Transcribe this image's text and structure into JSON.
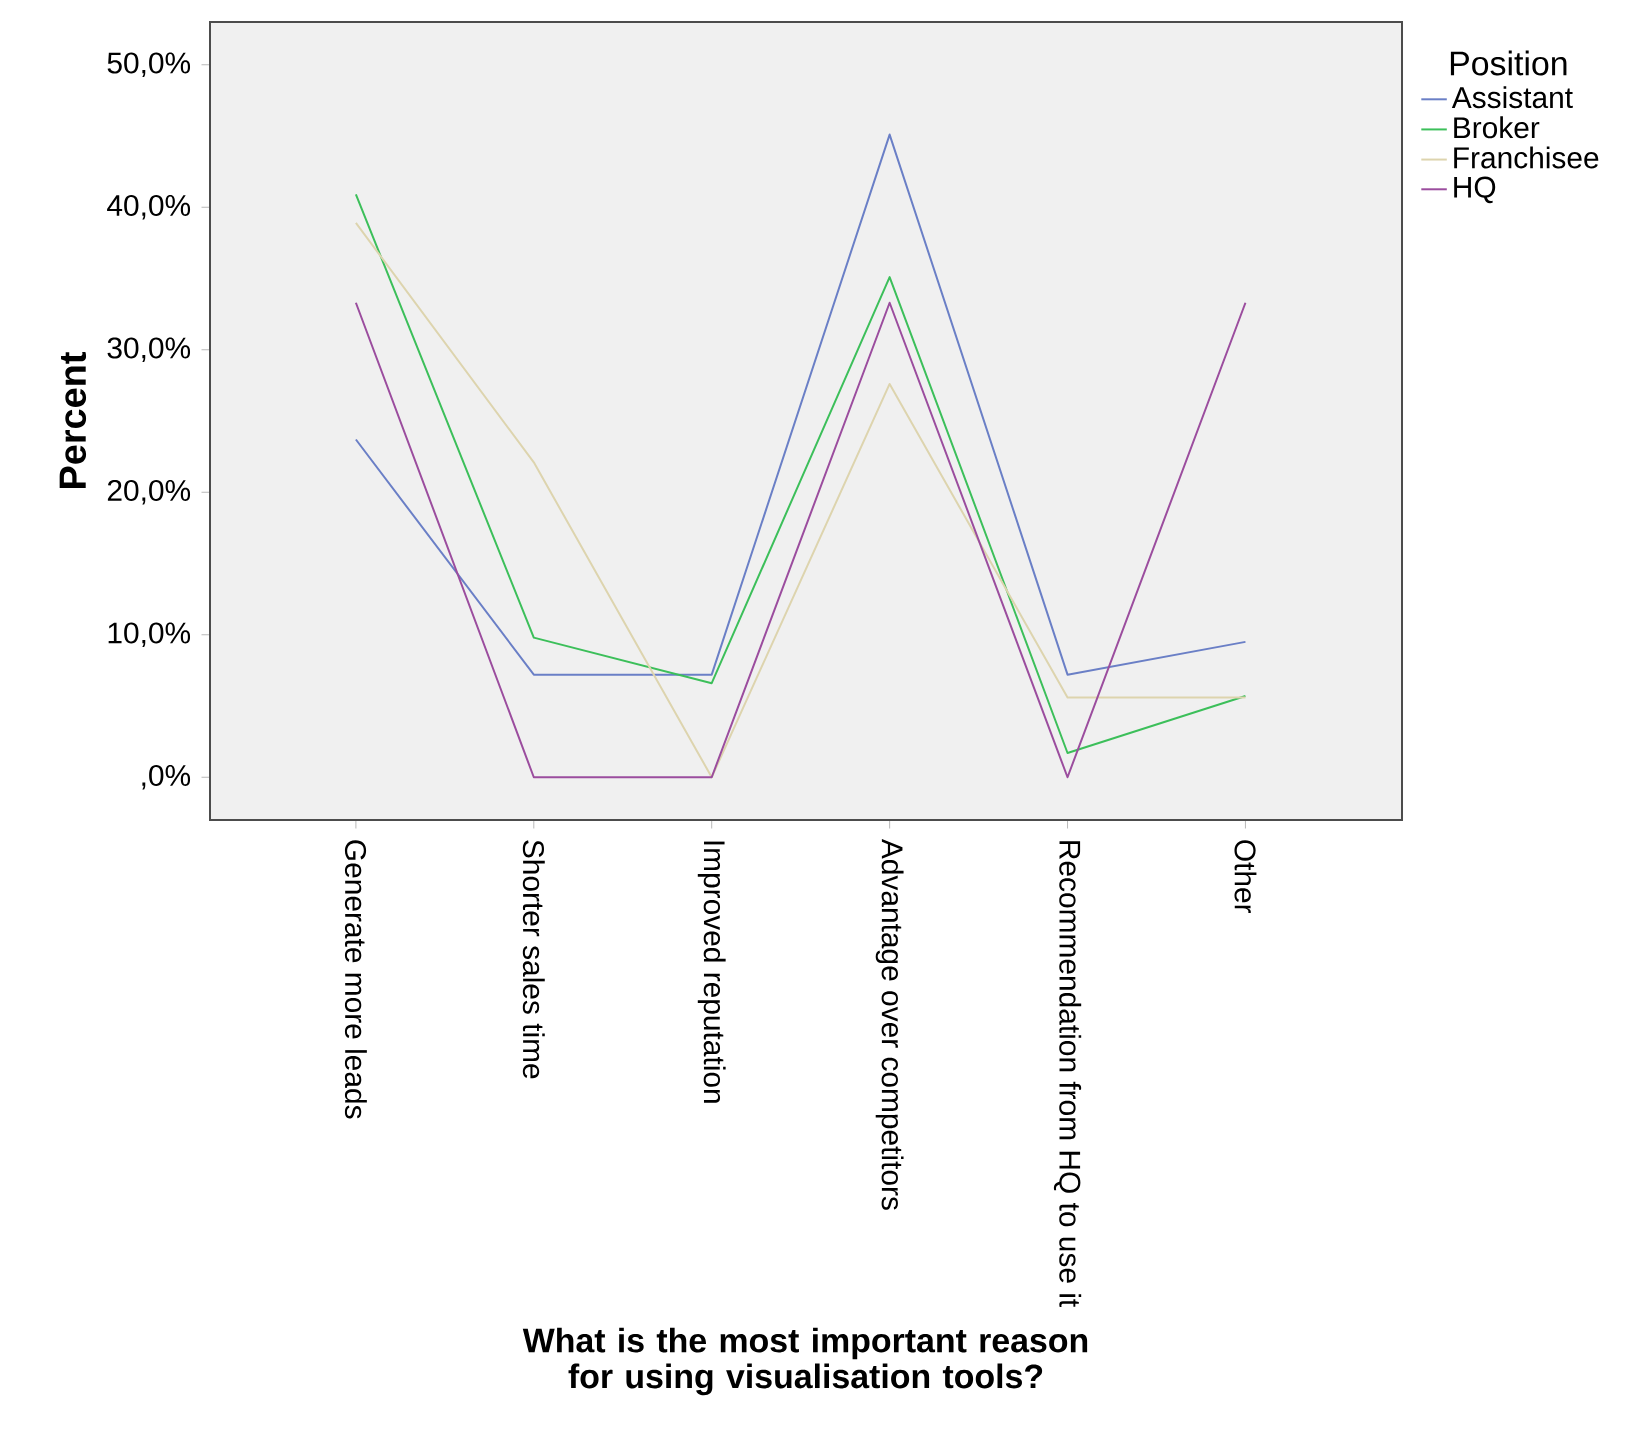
{
  "chart_data": {
    "type": "line",
    "xlabel": "What is the most important reason for using visualisation tools?",
    "ylabel": "Percent",
    "legend_title": "Position",
    "categories": [
      "Generate more leads",
      "Shorter sales time",
      "Improved reputation",
      "Advantage over competitors",
      "Recommendation from HQ to use it",
      "Other"
    ],
    "series": [
      {
        "name": "Assistant",
        "color": "#6a7fc6",
        "values": [
          23.7,
          7.2,
          7.2,
          45.1,
          7.2,
          9.5
        ]
      },
      {
        "name": "Broker",
        "color": "#3cbf5a",
        "values": [
          40.9,
          9.8,
          6.6,
          35.1,
          1.7,
          5.7
        ]
      },
      {
        "name": "Franchisee",
        "color": "#ddd4ae",
        "values": [
          38.9,
          22.1,
          0,
          27.6,
          5.6,
          5.6
        ]
      },
      {
        "name": "HQ",
        "color": "#9b4d9e",
        "values": [
          33.3,
          0,
          0,
          33.3,
          0,
          33.3
        ]
      }
    ],
    "ylim": [
      -3,
      53
    ],
    "yticks": [
      {
        "value": 0,
        "label": ",0%"
      },
      {
        "value": 10,
        "label": "10,0%"
      },
      {
        "value": 20,
        "label": "20,0%"
      },
      {
        "value": 30,
        "label": "30,0%"
      },
      {
        "value": 40,
        "label": "40,0%"
      },
      {
        "value": 50,
        "label": "50,0%"
      }
    ],
    "legend": "right",
    "grid": false,
    "marker": "none",
    "line_style": "solid"
  }
}
